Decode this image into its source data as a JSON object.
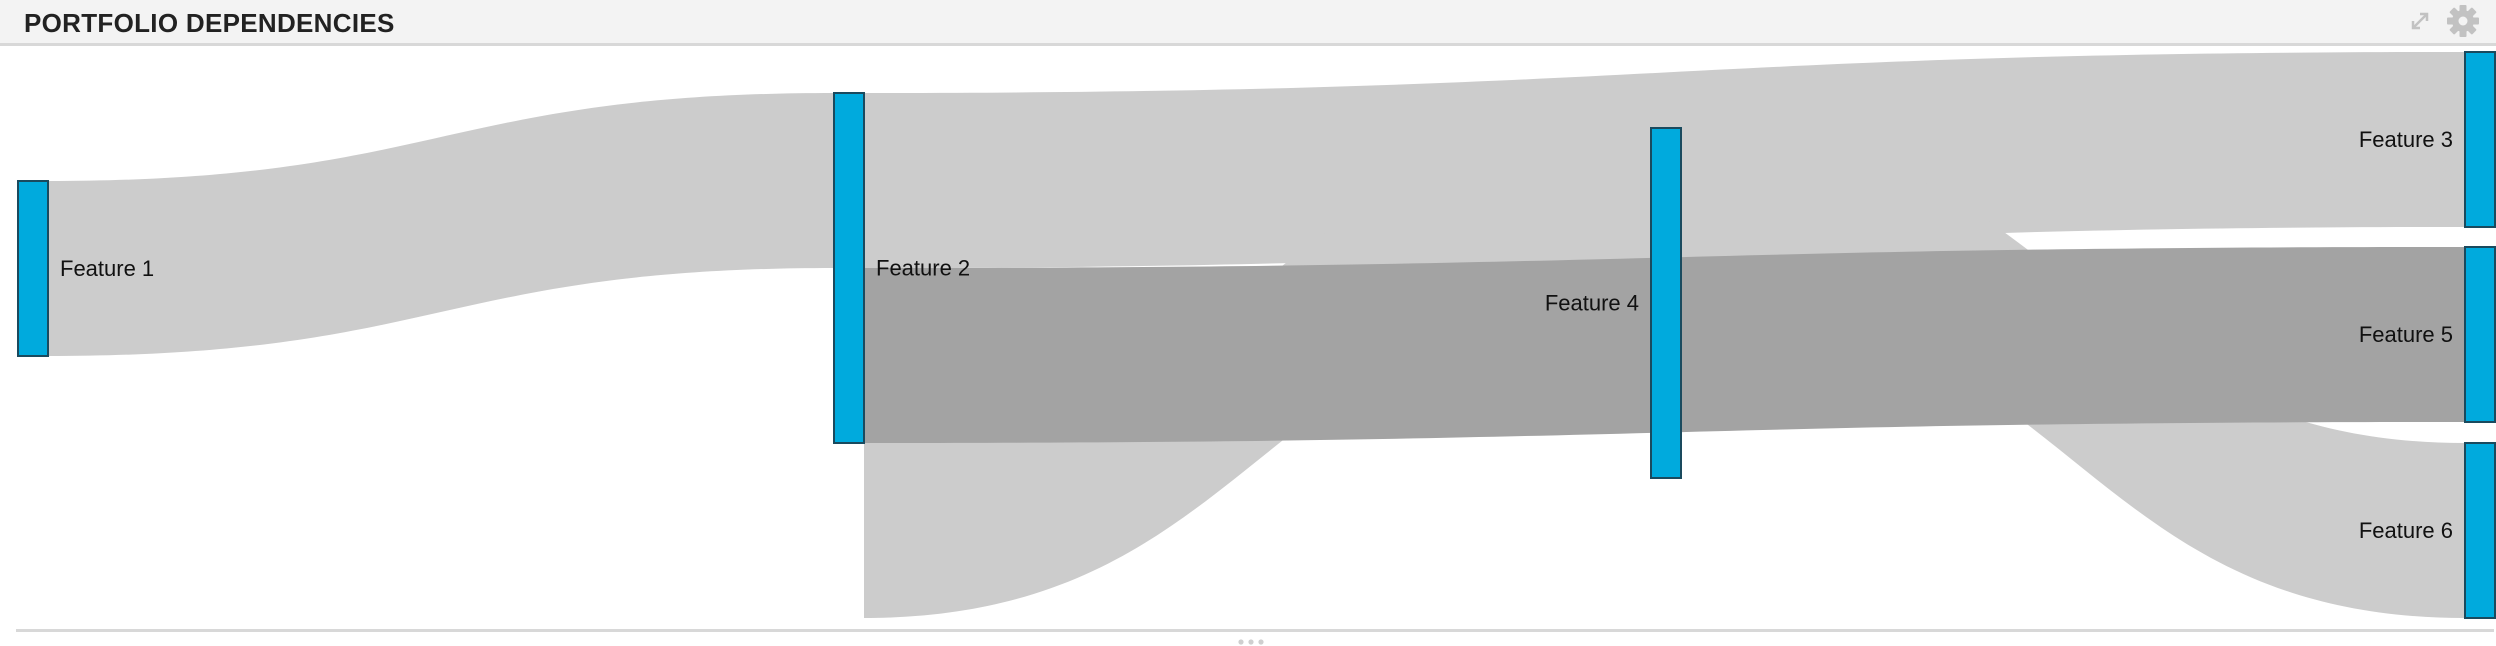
{
  "header": {
    "title": "PORTFOLIO DEPENDENCIES",
    "icons": [
      "expand-icon",
      "gear-icon"
    ]
  },
  "colors": {
    "node_fill": "#00aadd",
    "node_stroke": "#1a4a5e",
    "link": "#cccccc",
    "link_highlight": "#a3a3a3",
    "header_bg": "#f3f3f3"
  },
  "chart_data": {
    "type": "sankey",
    "nodes": [
      {
        "id": "f1",
        "label": "Feature 1",
        "value": 1
      },
      {
        "id": "f2",
        "label": "Feature 2",
        "value": 2
      },
      {
        "id": "f4",
        "label": "Feature 4",
        "value": 2
      },
      {
        "id": "f3",
        "label": "Feature 3",
        "value": 1
      },
      {
        "id": "f5",
        "label": "Feature 5",
        "value": 1
      },
      {
        "id": "f6",
        "label": "Feature 6",
        "value": 1
      }
    ],
    "links": [
      {
        "source": "f1",
        "target": "f2",
        "value": 1
      },
      {
        "source": "f2",
        "target": "f3",
        "value": 1
      },
      {
        "source": "f2",
        "target": "f4",
        "value": 1
      },
      {
        "source": "f2",
        "target": "f5",
        "value": 1
      },
      {
        "source": "f4",
        "target": "f6",
        "value": 1
      }
    ]
  }
}
